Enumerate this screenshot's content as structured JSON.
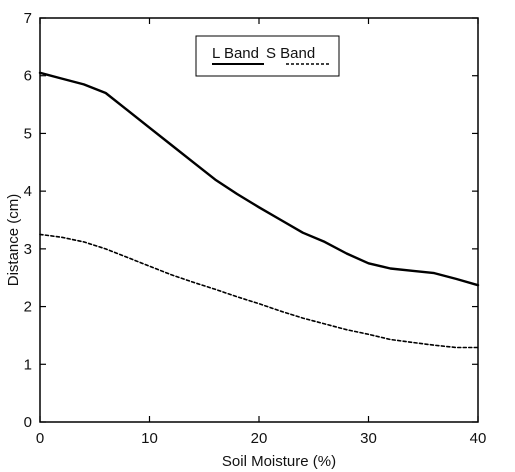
{
  "chart_data": {
    "type": "line",
    "title": "",
    "xlabel": "Soil Moisture (%)",
    "ylabel": "Distance (cm)",
    "xlim": [
      0,
      40
    ],
    "ylim": [
      0,
      7
    ],
    "xticks": [
      0,
      10,
      20,
      30,
      40
    ],
    "yticks": [
      0,
      1,
      2,
      3,
      4,
      5,
      6,
      7
    ],
    "grid": false,
    "legend_position": "top-center",
    "series": [
      {
        "name": "L Band",
        "style": "solid",
        "color": "#000000",
        "x": [
          0,
          2,
          4,
          6,
          8,
          10,
          12,
          14,
          16,
          18,
          20,
          22,
          24,
          26,
          28,
          30,
          32,
          34,
          36,
          38,
          40
        ],
        "y": [
          6.05,
          5.95,
          5.85,
          5.7,
          5.4,
          5.1,
          4.8,
          4.5,
          4.2,
          3.95,
          3.72,
          3.5,
          3.28,
          3.12,
          2.92,
          2.75,
          2.66,
          2.62,
          2.58,
          2.48,
          2.37
        ]
      },
      {
        "name": "S Band",
        "style": "dashed",
        "color": "#000000",
        "x": [
          0,
          2,
          4,
          6,
          8,
          10,
          12,
          14,
          16,
          18,
          20,
          22,
          24,
          26,
          28,
          30,
          32,
          34,
          36,
          38,
          40
        ],
        "y": [
          3.25,
          3.2,
          3.12,
          3.0,
          2.85,
          2.7,
          2.55,
          2.42,
          2.3,
          2.17,
          2.05,
          1.92,
          1.8,
          1.7,
          1.6,
          1.52,
          1.43,
          1.38,
          1.33,
          1.29,
          1.29
        ]
      }
    ]
  }
}
